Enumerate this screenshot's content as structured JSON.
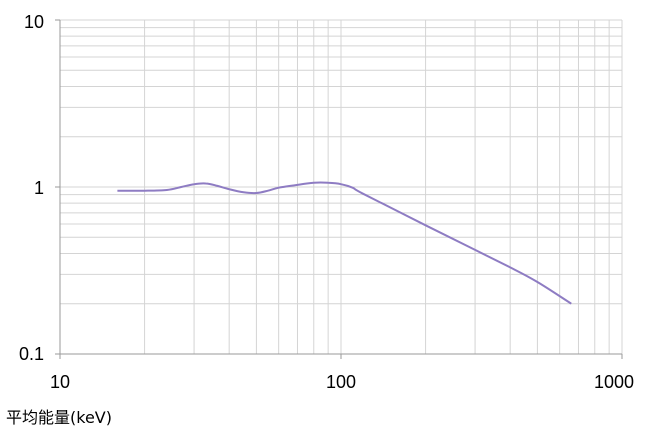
{
  "chart_data": {
    "type": "line",
    "title": "",
    "xlabel": "平均能量(keV)",
    "ylabel": "",
    "x_scale": "log",
    "y_scale": "log",
    "xlim": [
      10,
      1000
    ],
    "ylim": [
      0.1,
      10
    ],
    "grid": true,
    "legend": "none",
    "x_ticks": [
      "10",
      "100",
      "1000"
    ],
    "y_ticks": [
      "10",
      "1",
      "0.1"
    ],
    "series": [
      {
        "name": "",
        "color": "#8e7cc3",
        "x": [
          16,
          20,
          24,
          27,
          30,
          33,
          36,
          40,
          45,
          50,
          55,
          60,
          70,
          80,
          90,
          100,
          110,
          120,
          200,
          300,
          400,
          500,
          660
        ],
        "y": [
          0.95,
          0.95,
          0.96,
          1.0,
          1.04,
          1.05,
          1.02,
          0.97,
          0.93,
          0.92,
          0.95,
          0.99,
          1.03,
          1.06,
          1.06,
          1.04,
          0.99,
          0.91,
          0.59,
          0.42,
          0.33,
          0.27,
          0.2
        ]
      }
    ]
  }
}
